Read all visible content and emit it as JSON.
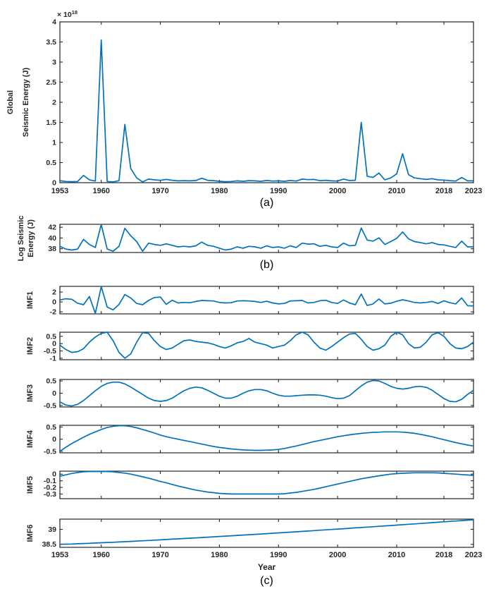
{
  "figure": {
    "background": "#ffffff",
    "line_color": "#0072BD",
    "axis_color": "#262626",
    "captions": {
      "a": "(a)",
      "b": "(b)",
      "c": "(c)"
    }
  },
  "chart_data": {
    "type": "line",
    "title": "",
    "xlabel": "Year",
    "xlim": [
      1953,
      2023
    ],
    "xticks": [
      1953,
      1960,
      1970,
      1980,
      1990,
      2000,
      2010,
      2018,
      2023
    ],
    "xtick_labels": [
      "1953",
      "1960",
      "1970",
      "1980",
      "1990",
      "2000",
      "2010",
      "2018",
      "2023"
    ],
    "x": [
      1953,
      1954,
      1955,
      1956,
      1957,
      1958,
      1959,
      1960,
      1961,
      1962,
      1963,
      1964,
      1965,
      1966,
      1967,
      1968,
      1969,
      1970,
      1971,
      1972,
      1973,
      1974,
      1975,
      1976,
      1977,
      1978,
      1979,
      1980,
      1981,
      1982,
      1983,
      1984,
      1985,
      1986,
      1987,
      1988,
      1989,
      1990,
      1991,
      1992,
      1993,
      1994,
      1995,
      1996,
      1997,
      1998,
      1999,
      2000,
      2001,
      2002,
      2003,
      2004,
      2005,
      2006,
      2007,
      2008,
      2009,
      2010,
      2011,
      2012,
      2013,
      2014,
      2015,
      2016,
      2017,
      2018,
      2019,
      2020,
      2021,
      2022,
      2023
    ],
    "subplots": [
      {
        "id": "a",
        "caption": "(a)",
        "ylabel_lines": [
          "Global",
          "Seismic Energy (J)"
        ],
        "exponent_base": "× 10",
        "exponent_power": "18",
        "unit_scale": "1e18 J",
        "ylim": [
          0,
          4
        ],
        "ytick_vals": [
          0,
          0.5,
          1,
          1.5,
          2,
          2.5,
          3,
          3.5,
          4
        ],
        "ytick_labels": [
          "0",
          "0.5",
          "1",
          "1.5",
          "2",
          "2.5",
          "3",
          "3.5",
          "4"
        ],
        "show_xtick_labels": true,
        "values": [
          0.05,
          0.03,
          0.025,
          0.03,
          0.18,
          0.07,
          0.04,
          3.55,
          0.03,
          0.02,
          0.05,
          1.45,
          0.35,
          0.12,
          0.02,
          0.09,
          0.07,
          0.06,
          0.08,
          0.06,
          0.045,
          0.05,
          0.045,
          0.055,
          0.11,
          0.06,
          0.05,
          0.035,
          0.025,
          0.03,
          0.045,
          0.035,
          0.05,
          0.045,
          0.035,
          0.055,
          0.04,
          0.045,
          0.035,
          0.055,
          0.04,
          0.09,
          0.075,
          0.08,
          0.05,
          0.06,
          0.045,
          0.04,
          0.09,
          0.055,
          0.06,
          1.5,
          0.16,
          0.13,
          0.24,
          0.07,
          0.12,
          0.22,
          0.72,
          0.2,
          0.12,
          0.1,
          0.08,
          0.1,
          0.07,
          0.065,
          0.05,
          0.04,
          0.13,
          0.045,
          0.045
        ]
      },
      {
        "id": "b",
        "caption": "(b)",
        "ylabel_lines": [
          "Log Seismic",
          "Energy (J)"
        ],
        "ylim": [
          37.3,
          42.55
        ],
        "ytick_vals": [
          38,
          40,
          42
        ],
        "ytick_labels": [
          "38",
          "40",
          "42"
        ],
        "show_xtick_labels": false,
        "values": [
          38.45,
          37.94,
          37.76,
          37.94,
          39.74,
          38.79,
          38.23,
          42.5,
          37.94,
          37.54,
          38.45,
          41.82,
          40.4,
          39.33,
          37.54,
          39.04,
          38.79,
          38.64,
          38.92,
          38.64,
          38.35,
          38.45,
          38.35,
          38.55,
          39.24,
          38.64,
          38.45,
          38.1,
          37.76,
          37.94,
          38.35,
          38.1,
          38.45,
          38.35,
          38.1,
          38.55,
          38.23,
          38.35,
          38.1,
          38.55,
          38.23,
          39.04,
          38.86,
          38.92,
          38.45,
          38.64,
          38.35,
          38.23,
          39.04,
          38.55,
          38.64,
          41.86,
          39.62,
          39.41,
          40.02,
          38.79,
          39.33,
          39.94,
          41.12,
          39.84,
          39.33,
          39.15,
          38.92,
          39.15,
          38.79,
          38.72,
          38.45,
          38.23,
          39.41,
          38.35,
          38.35
        ]
      },
      {
        "id": "imf1",
        "ylabel_lines": [
          "IMF1"
        ],
        "ylim": [
          -2.4,
          3.15
        ],
        "ytick_vals": [
          2,
          0,
          -2
        ],
        "ytick_labels": [
          "2",
          "0",
          "-2"
        ],
        "show_xtick_labels": false,
        "values": [
          0.4,
          0.65,
          0.55,
          -0.25,
          -0.55,
          1.1,
          -2.3,
          3.1,
          -1.0,
          -1.6,
          -0.5,
          1.5,
          0.8,
          -0.3,
          -0.55,
          0.3,
          0.9,
          1.0,
          -0.5,
          0.35,
          -0.2,
          -0.1,
          -0.15,
          0.1,
          0.3,
          0.25,
          0.2,
          -0.1,
          -0.2,
          -0.15,
          0.2,
          0.25,
          0.2,
          0.1,
          -0.1,
          0.15,
          -0.2,
          -0.4,
          -0.3,
          0.2,
          0.25,
          0.3,
          -0.2,
          -0.1,
          0.25,
          0.35,
          -0.1,
          -0.3,
          0.4,
          -0.2,
          -0.55,
          1.6,
          -0.7,
          -0.4,
          0.6,
          -0.4,
          -0.25,
          0.15,
          0.45,
          0.2,
          -0.1,
          -0.2,
          -0.1,
          0.1,
          -0.3,
          0.25,
          -0.15,
          -0.4,
          0.8,
          -0.75,
          -0.8
        ]
      },
      {
        "id": "imf2",
        "ylabel_lines": [
          "IMF2"
        ],
        "ylim": [
          -1.1,
          0.78
        ],
        "ytick_vals": [
          0.5,
          0,
          -0.5,
          -1
        ],
        "ytick_labels": [
          "0.5",
          "0",
          "-0.5",
          "-1"
        ],
        "show_xtick_labels": false,
        "values": [
          -0.1,
          -0.4,
          -0.6,
          -0.55,
          -0.35,
          0.1,
          0.45,
          0.7,
          0.78,
          0.2,
          -0.6,
          -1.0,
          -0.7,
          0.1,
          0.75,
          0.7,
          0.2,
          -0.2,
          -0.4,
          -0.3,
          -0.05,
          0.2,
          0.25,
          0.15,
          0.1,
          0.05,
          -0.05,
          -0.2,
          -0.3,
          -0.15,
          0.05,
          0.15,
          0.35,
          0.1,
          0.0,
          -0.1,
          -0.3,
          -0.2,
          -0.1,
          0.2,
          0.6,
          0.78,
          0.6,
          0.1,
          -0.3,
          -0.45,
          -0.2,
          0.1,
          0.4,
          0.65,
          0.7,
          0.3,
          -0.2,
          -0.45,
          -0.35,
          -0.1,
          0.5,
          0.78,
          0.6,
          0.0,
          -0.3,
          -0.25,
          0.1,
          0.6,
          0.75,
          0.5,
          0.0,
          -0.3,
          -0.35,
          -0.2,
          0.1
        ]
      },
      {
        "id": "imf3",
        "ylabel_lines": [
          "IMF3"
        ],
        "ylim": [
          -0.56,
          0.56
        ],
        "ytick_vals": [
          0.5,
          0,
          -0.5
        ],
        "ytick_labels": [
          "0.5",
          "0",
          "-0.5"
        ],
        "show_xtick_labels": false,
        "values": [
          -0.35,
          -0.48,
          -0.52,
          -0.45,
          -0.3,
          -0.1,
          0.1,
          0.28,
          0.4,
          0.45,
          0.45,
          0.38,
          0.25,
          0.1,
          -0.05,
          -0.2,
          -0.3,
          -0.33,
          -0.3,
          -0.2,
          -0.05,
          0.1,
          0.2,
          0.25,
          0.22,
          0.12,
          0.0,
          -0.12,
          -0.2,
          -0.2,
          -0.12,
          0.0,
          0.1,
          0.15,
          0.15,
          0.1,
          0.0,
          -0.08,
          -0.12,
          -0.12,
          -0.1,
          -0.08,
          -0.07,
          -0.07,
          -0.08,
          -0.12,
          -0.18,
          -0.22,
          -0.2,
          -0.1,
          0.1,
          0.3,
          0.45,
          0.52,
          0.5,
          0.4,
          0.28,
          0.2,
          0.17,
          0.2,
          0.26,
          0.28,
          0.24,
          0.12,
          -0.05,
          -0.22,
          -0.33,
          -0.35,
          -0.25,
          -0.05,
          0.12
        ]
      },
      {
        "id": "imf4",
        "ylabel_lines": [
          "IMF4"
        ],
        "ylim": [
          -0.56,
          0.57
        ],
        "ytick_vals": [
          0.5,
          0,
          -0.5
        ],
        "ytick_labels": [
          "0.5",
          "0",
          "-0.5"
        ],
        "show_xtick_labels": false,
        "values": [
          -0.5,
          -0.33,
          -0.18,
          -0.05,
          0.08,
          0.2,
          0.3,
          0.4,
          0.48,
          0.53,
          0.55,
          0.55,
          0.52,
          0.47,
          0.4,
          0.33,
          0.25,
          0.17,
          0.1,
          0.05,
          0.0,
          -0.05,
          -0.1,
          -0.15,
          -0.2,
          -0.25,
          -0.3,
          -0.34,
          -0.37,
          -0.4,
          -0.42,
          -0.44,
          -0.45,
          -0.46,
          -0.46,
          -0.45,
          -0.44,
          -0.42,
          -0.38,
          -0.33,
          -0.28,
          -0.22,
          -0.16,
          -0.1,
          -0.05,
          0.0,
          0.05,
          0.1,
          0.14,
          0.18,
          0.21,
          0.24,
          0.26,
          0.28,
          0.29,
          0.3,
          0.3,
          0.3,
          0.29,
          0.27,
          0.24,
          0.2,
          0.15,
          0.1,
          0.04,
          -0.02,
          -0.08,
          -0.14,
          -0.19,
          -0.24,
          -0.28
        ]
      },
      {
        "id": "imf5",
        "ylabel_lines": [
          "IMF5"
        ],
        "ylim": [
          -0.37,
          0.045
        ],
        "ytick_vals": [
          0,
          -0.1,
          -0.2,
          -0.3
        ],
        "ytick_labels": [
          "0",
          "-0.1",
          "-0.2",
          "-0.3"
        ],
        "show_xtick_labels": false,
        "values": [
          -0.03,
          -0.01,
          0.01,
          0.025,
          0.035,
          0.04,
          0.04,
          0.04,
          0.04,
          0.035,
          0.025,
          0.015,
          0.0,
          -0.02,
          -0.04,
          -0.06,
          -0.085,
          -0.11,
          -0.13,
          -0.155,
          -0.18,
          -0.2,
          -0.22,
          -0.24,
          -0.255,
          -0.27,
          -0.28,
          -0.29,
          -0.295,
          -0.3,
          -0.3,
          -0.3,
          -0.3,
          -0.3,
          -0.3,
          -0.3,
          -0.3,
          -0.3,
          -0.295,
          -0.285,
          -0.275,
          -0.26,
          -0.245,
          -0.23,
          -0.21,
          -0.19,
          -0.17,
          -0.15,
          -0.13,
          -0.11,
          -0.09,
          -0.07,
          -0.055,
          -0.04,
          -0.025,
          -0.012,
          0.0,
          0.008,
          0.013,
          0.017,
          0.02,
          0.02,
          0.02,
          0.02,
          0.018,
          0.012,
          0.006,
          0.0,
          -0.006,
          -0.012,
          -0.02
        ]
      },
      {
        "id": "imf6",
        "caption": "(c)",
        "ylabel_lines": [
          "IMF6"
        ],
        "ylim": [
          38.4,
          39.34
        ],
        "ytick_vals": [
          39,
          38.5
        ],
        "ytick_labels": [
          "39",
          "38.5"
        ],
        "show_xtick_labels": true,
        "values": [
          38.5,
          38.505,
          38.511,
          38.519,
          38.527,
          38.535,
          38.543,
          38.552,
          38.561,
          38.57,
          38.579,
          38.589,
          38.598,
          38.608,
          38.619,
          38.629,
          38.639,
          38.65,
          38.661,
          38.672,
          38.683,
          38.694,
          38.705,
          38.716,
          38.727,
          38.739,
          38.75,
          38.761,
          38.773,
          38.785,
          38.797,
          38.808,
          38.82,
          38.832,
          38.844,
          38.857,
          38.869,
          38.881,
          38.893,
          38.906,
          38.918,
          38.931,
          38.944,
          38.957,
          38.97,
          38.982,
          38.995,
          39.008,
          39.021,
          39.035,
          39.048,
          39.061,
          39.074,
          39.087,
          39.101,
          39.114,
          39.127,
          39.141,
          39.154,
          39.168,
          39.181,
          39.195,
          39.209,
          39.222,
          39.236,
          39.25,
          39.264,
          39.277,
          39.291,
          39.305,
          39.319
        ]
      }
    ]
  }
}
